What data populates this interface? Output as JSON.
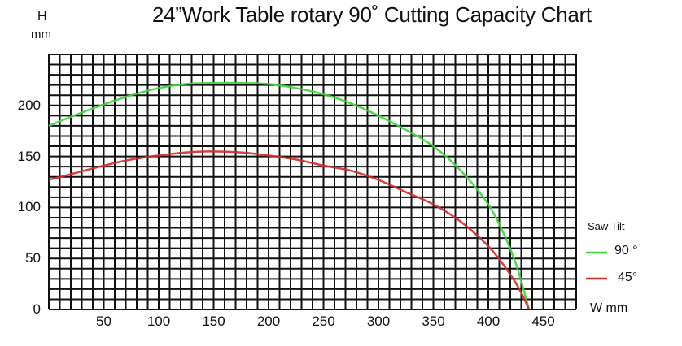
{
  "chart_data": {
    "type": "line",
    "title": "24”Work Table rotary 90˚ Cutting Capacity Chart",
    "xlabel": "W mm",
    "ylabel_line1": "H",
    "ylabel_line2": "mm",
    "xlim": [
      0,
      480
    ],
    "ylim": [
      0,
      250
    ],
    "grid": true,
    "grid_step": 10,
    "xticks": [
      50,
      100,
      150,
      200,
      250,
      300,
      350,
      400,
      450
    ],
    "yticks": [
      0,
      50,
      100,
      150,
      200
    ],
    "legend_title": "Saw Tilt",
    "legend_position": "right",
    "series": [
      {
        "name": "90 °",
        "color": "#3ad63a",
        "x": [
          0,
          25,
          50,
          75,
          100,
          125,
          150,
          175,
          200,
          225,
          250,
          275,
          300,
          325,
          350,
          375,
          400,
          415,
          425,
          432,
          437
        ],
        "y": [
          180,
          191,
          201,
          210,
          217,
          221,
          222,
          222,
          221,
          217,
          211,
          202,
          190,
          176,
          160,
          136,
          103,
          72,
          45,
          20,
          0
        ]
      },
      {
        "name": "45°",
        "color": "#d42a2a",
        "x": [
          0,
          25,
          50,
          75,
          100,
          125,
          150,
          175,
          200,
          225,
          250,
          275,
          300,
          325,
          350,
          375,
          400,
          415,
          425,
          432,
          437
        ],
        "y": [
          127,
          134,
          141,
          147,
          151,
          154,
          155,
          154,
          151,
          147,
          141,
          136,
          127,
          115,
          103,
          86,
          62,
          42,
          26,
          12,
          0
        ]
      }
    ]
  }
}
